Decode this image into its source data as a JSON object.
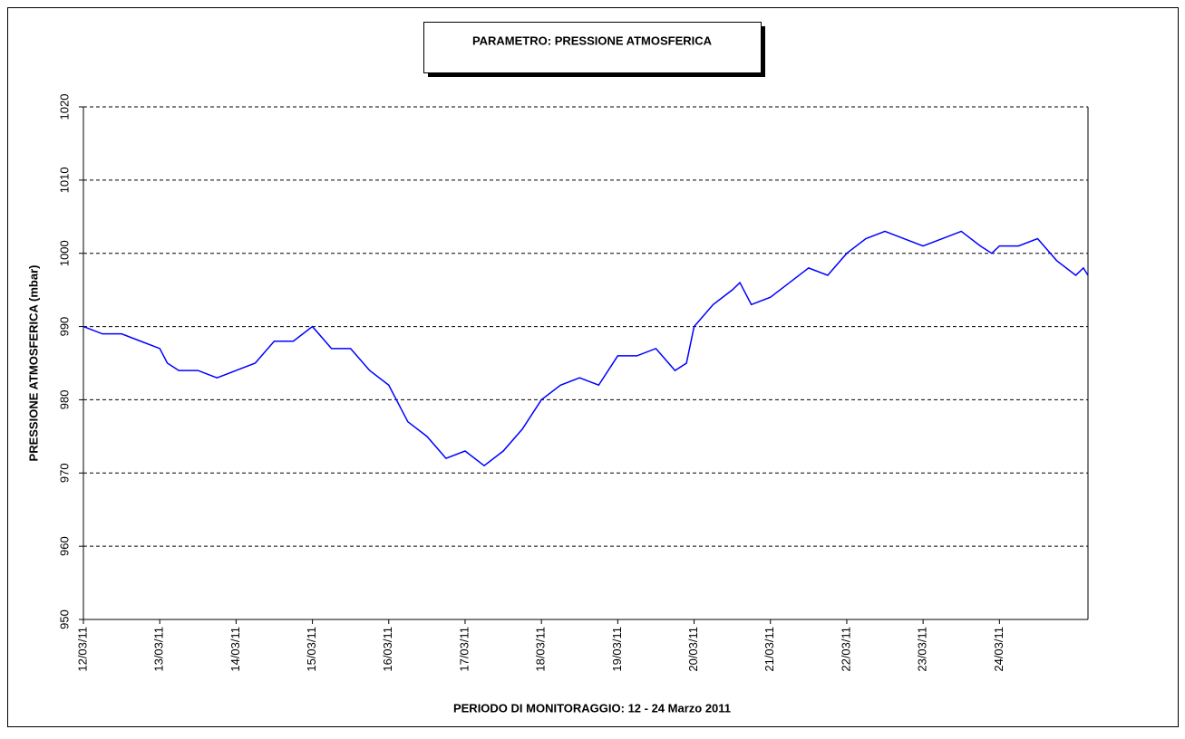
{
  "chart_data": {
    "type": "line",
    "title": "PARAMETRO: PRESSIONE ATMOSFERICA",
    "x_label": "PERIODO DI MONITORAGGIO: 12 - 24 Marzo 2011",
    "y_label": "PRESSIONE ATMOSFERICA (mbar)",
    "x": [
      0,
      0.25,
      0.5,
      0.75,
      1.0,
      1.1,
      1.25,
      1.5,
      1.75,
      2.0,
      2.25,
      2.5,
      2.75,
      3.0,
      3.25,
      3.5,
      3.75,
      4.0,
      4.1,
      4.25,
      4.5,
      4.75,
      5.0,
      5.25,
      5.5,
      5.75,
      6.0,
      6.25,
      6.5,
      6.75,
      7.0,
      7.25,
      7.5,
      7.75,
      7.9,
      8.0,
      8.25,
      8.5,
      8.6,
      8.75,
      9.0,
      9.25,
      9.5,
      9.75,
      10.0,
      10.25,
      10.5,
      10.75,
      11.0,
      11.25,
      11.5,
      11.75,
      11.9,
      12.0,
      12.25,
      12.5,
      12.75,
      13.0,
      13.1,
      13.16
    ],
    "series": [
      {
        "name": "PRESSIONE ATMOSFERICA",
        "color": "#0000ff",
        "values": [
          990,
          989,
          989,
          988,
          987,
          985,
          984,
          984,
          983,
          984,
          985,
          988,
          988,
          990,
          987,
          987,
          984,
          982,
          980,
          977,
          975,
          972,
          973,
          971,
          973,
          976,
          980,
          982,
          983,
          982,
          986,
          986,
          987,
          984,
          985,
          990,
          993,
          995,
          996,
          993,
          994,
          996,
          998,
          997,
          1000,
          1002,
          1003,
          1002,
          1001,
          1002,
          1003,
          1001,
          1000,
          1001,
          1001,
          1002,
          999,
          997,
          998,
          997
        ]
      }
    ],
    "xlim": [
      0,
      13.16
    ],
    "xticks": [
      {
        "value": 0,
        "label": "12/03/11"
      },
      {
        "value": 1,
        "label": "13/03/11"
      },
      {
        "value": 2,
        "label": "14/03/11"
      },
      {
        "value": 3,
        "label": "15/03/11"
      },
      {
        "value": 4,
        "label": "16/03/11"
      },
      {
        "value": 5,
        "label": "17/03/11"
      },
      {
        "value": 6,
        "label": "18/03/11"
      },
      {
        "value": 7,
        "label": "19/03/11"
      },
      {
        "value": 8,
        "label": "20/03/11"
      },
      {
        "value": 9,
        "label": "21/03/11"
      },
      {
        "value": 10,
        "label": "22/03/11"
      },
      {
        "value": 11,
        "label": "23/03/11"
      },
      {
        "value": 12,
        "label": "24/03/11"
      }
    ],
    "ylim": [
      950,
      1020
    ],
    "yticks": [
      950,
      960,
      970,
      980,
      990,
      1000,
      1010,
      1020
    ],
    "grid": true
  }
}
